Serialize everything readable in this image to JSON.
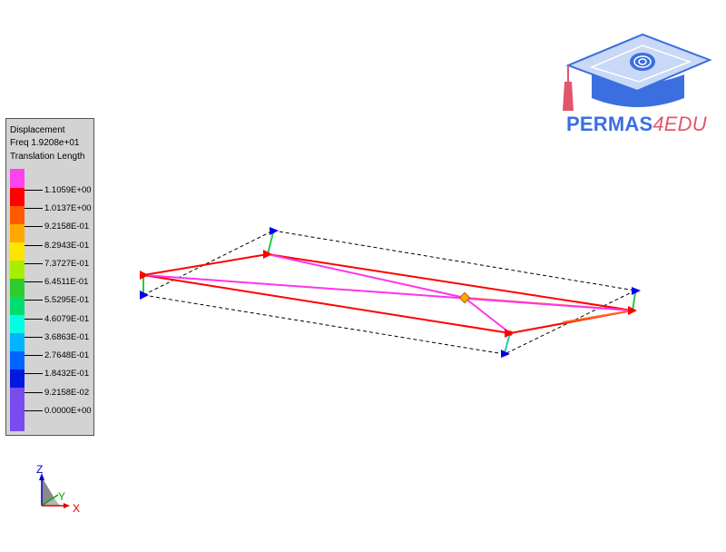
{
  "legend": {
    "title_line1": "Displacement",
    "title_line2": "Freq 1.9208e+01",
    "title_line3": "Translation Length",
    "values": [
      "1.1059E+00",
      "1.0137E+00",
      "9.2158E-01",
      "8.2943E-01",
      "7.3727E-01",
      "6.4511E-01",
      "5.5295E-01",
      "4.6079E-01",
      "3.6863E-01",
      "2.7648E-01",
      "1.8432E-01",
      "9.2158E-02",
      "0.0000E+00"
    ],
    "colors": [
      "#ff44ee",
      "#ff0000",
      "#ff5a00",
      "#ffa800",
      "#ffe400",
      "#a8ee00",
      "#2ecc2e",
      "#00dc6e",
      "#00ffe0",
      "#00b4ff",
      "#0064ff",
      "#0018e0",
      "#7a4cf0"
    ]
  },
  "logo": {
    "text_main": "PERMAS",
    "text_suffix": "4EDU",
    "color_main": "#3b6fe0",
    "color_suffix": "#e0566b"
  },
  "triad": {
    "z_label": "Z",
    "y_label": "Y",
    "x_label": "X"
  }
}
